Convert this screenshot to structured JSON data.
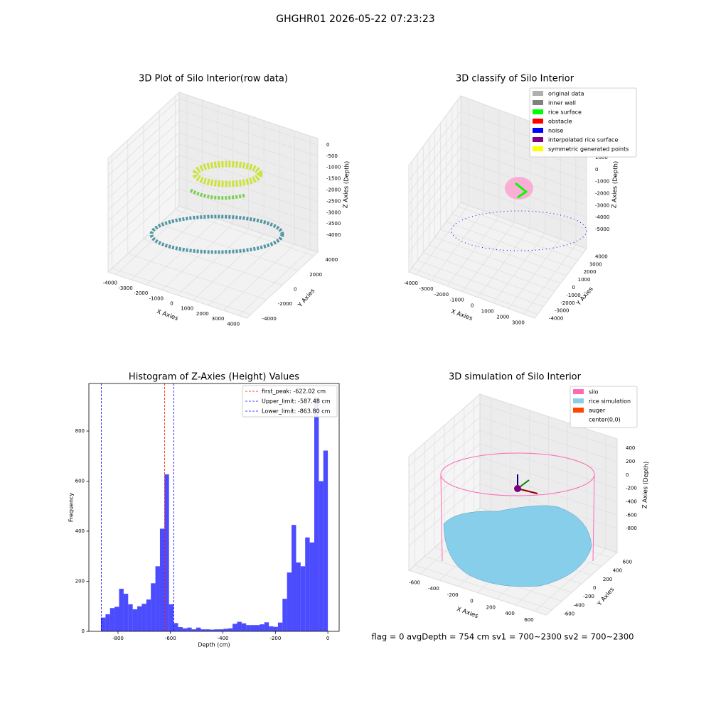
{
  "title": "GHGHR01 2026-05-22 07:23:23",
  "footer": "flag = 0     avgDepth = 754 cm  sv1 = 700~2300  sv2 = 700~2300",
  "chart_data": [
    {
      "type": "scatter3d",
      "title": "3D Plot of Silo Interior(row data)",
      "xlabel": "X Axies",
      "ylabel": "Y Axies",
      "zlabel": "Z Axies (Depth)",
      "xlim": [
        -4500,
        4500
      ],
      "ylim": [
        -4500,
        4500
      ],
      "zlim": [
        -4750,
        280
      ],
      "xticks": [
        -4000,
        -3000,
        -2000,
        -1000,
        0,
        1000,
        2000,
        3000,
        4000
      ],
      "yticks": [
        -4000,
        -2000,
        0,
        2000,
        4000
      ],
      "zticks": [
        0,
        -500,
        -1000,
        -1500,
        -2000,
        -2500,
        -3000,
        -3500,
        -4000
      ]
    },
    {
      "type": "scatter3d",
      "title": "3D classify of Silo Interior",
      "xlabel": "X Axies",
      "ylabel": "Y Axies",
      "zlabel": "Z Axies (Depth)",
      "xlim": [
        -4500,
        3700
      ],
      "ylim": [
        -4500,
        4500
      ],
      "zlim": [
        -6600,
        2300
      ],
      "xticks": [
        -4000,
        -3000,
        -2000,
        -1000,
        0,
        1000,
        2000,
        3000
      ],
      "yticks": [
        -4000,
        -3000,
        -2000,
        -1000,
        0,
        1000,
        2000,
        3000,
        4000
      ],
      "zticks": [
        1000,
        0,
        -1000,
        -2000,
        -3000,
        -4000,
        -5000
      ],
      "legend": [
        {
          "name": "original data",
          "color": "#b0b0b0"
        },
        {
          "name": "inner wall",
          "color": "#808080"
        },
        {
          "name": "rice surface",
          "color": "#00ff00"
        },
        {
          "name": "obstacle",
          "color": "#ff0000"
        },
        {
          "name": "noise",
          "color": "#0000ff"
        },
        {
          "name": "interpolated rice surface",
          "color": "#800080"
        },
        {
          "name": "symmetric generated points",
          "color": "#ffff00"
        }
      ]
    },
    {
      "type": "histogram",
      "title": "Histogram of Z-Axies (Height) Values",
      "xlabel": "Depth (cm)",
      "ylabel": "Frequency",
      "color": "#0000ff",
      "xlim": [
        -911,
        43
      ],
      "ylim": [
        0,
        990
      ],
      "xticks": [
        -800,
        -600,
        -400,
        -200,
        0
      ],
      "yticks": [
        0,
        200,
        400,
        600,
        800
      ],
      "bins": [
        -865.0,
        -847.7,
        -830.4,
        -813.1,
        -795.8,
        -778.5,
        -761.2,
        -743.9,
        -726.6,
        -709.3,
        -692.0,
        -674.7,
        -657.4,
        -640.1,
        -622.8,
        -605.5,
        -588.2,
        -570.9,
        -553.6,
        -536.3,
        -519.0,
        -501.7,
        -484.4,
        -467.1,
        -449.8,
        -432.5,
        -415.2,
        -397.9,
        -380.6,
        -363.3,
        -346.0,
        -328.7,
        -311.4,
        -294.1,
        -276.8,
        -259.5,
        -242.2,
        -224.9,
        -207.6,
        -190.3,
        -173.0,
        -155.7,
        -138.4,
        -121.1,
        -103.8,
        -86.5,
        -69.2,
        -51.9,
        -34.6,
        -17.3,
        0
      ],
      "values": [
        55,
        68,
        93,
        98,
        170,
        150,
        108,
        88,
        100,
        110,
        127,
        192,
        260,
        410,
        627,
        108,
        33,
        17,
        12,
        15,
        8,
        15,
        8,
        8,
        7,
        8,
        8,
        10,
        12,
        30,
        38,
        32,
        25,
        25,
        25,
        28,
        36,
        20,
        18,
        35,
        130,
        235,
        425,
        275,
        260,
        375,
        355,
        935,
        600,
        722
      ],
      "lines": [
        {
          "name": "first_peak: -622.02 cm",
          "value": -622.02,
          "color": "#ff0000"
        },
        {
          "name": "Upper_limit: -587.48 cm",
          "value": -587.48,
          "color": "#0000ff"
        },
        {
          "name": "Lower_limit: -863.80 cm",
          "value": -863.8,
          "color": "#0000ff"
        }
      ]
    },
    {
      "type": "surface3d",
      "title": "3D simulation of Silo Interior",
      "xlabel": "X Axies",
      "ylabel": "Y Axies",
      "zlabel": "Z Axies (Depth)",
      "xlim": [
        -720,
        720
      ],
      "ylim": [
        -720,
        720
      ],
      "zlim": [
        -1160,
        540
      ],
      "xticks": [
        -600,
        -400,
        -200,
        0,
        200,
        400,
        600
      ],
      "yticks": [
        -600,
        -400,
        -200,
        0,
        200,
        400,
        600
      ],
      "zticks": [
        400,
        200,
        0,
        -200,
        -400,
        -600,
        -800
      ],
      "legend": [
        {
          "name": "silo",
          "color": "#ff69b4"
        },
        {
          "name": "rice simulation",
          "color": "#87ceeb"
        },
        {
          "name": "auger",
          "color": "#ff4500"
        },
        {
          "name": "center(0,0)",
          "color": null
        }
      ]
    }
  ]
}
